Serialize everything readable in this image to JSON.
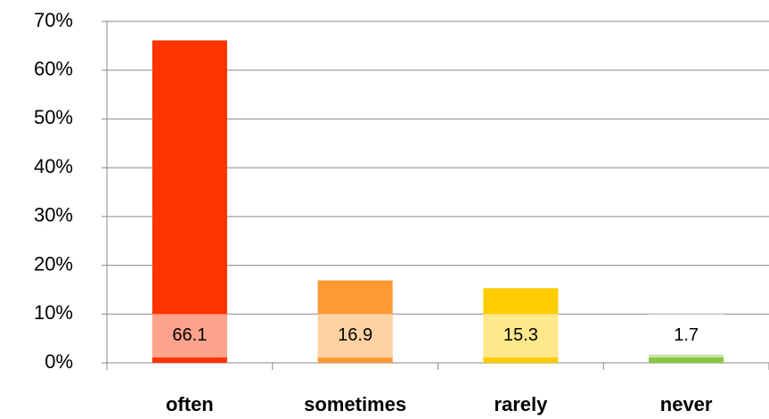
{
  "chart_data": {
    "type": "bar",
    "categories": [
      "often",
      "sometimes",
      "rarely",
      "never"
    ],
    "values": [
      66.1,
      16.9,
      15.3,
      1.7
    ],
    "colors": [
      "#ff3300",
      "#ff9933",
      "#ffcc00",
      "#88c540"
    ],
    "ylim": [
      0,
      70
    ],
    "yticks": [
      {
        "value": 0,
        "label": "0%"
      },
      {
        "value": 10,
        "label": "10%"
      },
      {
        "value": 20,
        "label": "20%"
      },
      {
        "value": 30,
        "label": "30%"
      },
      {
        "value": 40,
        "label": "40%"
      },
      {
        "value": 50,
        "label": "50%"
      },
      {
        "value": 60,
        "label": "60%"
      },
      {
        "value": 70,
        "label": "70%"
      }
    ],
    "grid": true
  }
}
